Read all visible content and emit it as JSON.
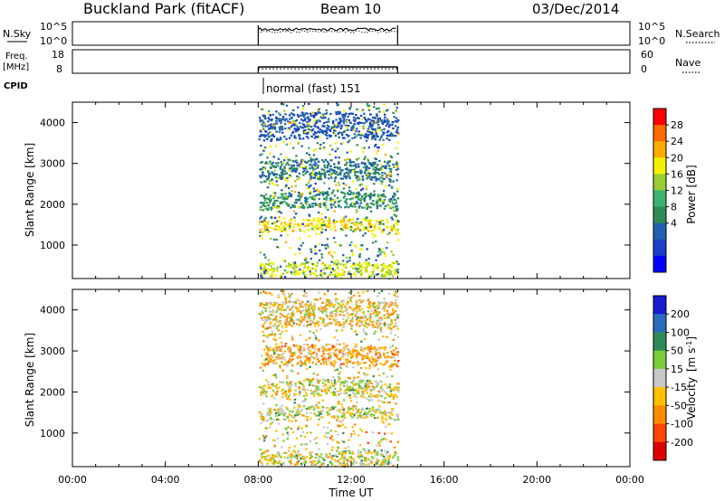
{
  "header": {
    "station": "Buckland Park (fitACF)",
    "beam": "Beam 10",
    "date": "03/Dec/2014"
  },
  "panels": {
    "nsky": {
      "label": "N.Sky",
      "left_ticks": [
        "10^5",
        "10^0"
      ],
      "right_ticks": [
        "10^5",
        "10^0"
      ],
      "right_label": "N.Search"
    },
    "freq": {
      "label_line1": "Freq.",
      "label_line2": "[MHz]",
      "left_ticks": [
        "18",
        "8"
      ],
      "right_ticks": [
        "60",
        "0"
      ],
      "right_label": "Nave"
    },
    "cpid": {
      "label": "CPID",
      "text": "normal (fast) 151"
    }
  },
  "chart_data": [
    {
      "type": "heatmap",
      "name": "power",
      "ylabel": "Slant Range [km]",
      "yticks": [
        "4000",
        "3000",
        "2000",
        "1000"
      ],
      "ytick_values": [
        4000,
        3000,
        2000,
        1000
      ],
      "ylim": [
        180,
        4500
      ],
      "colorbar_label": "Power [dB]",
      "colorbar_ticks": [
        "28",
        "24",
        "20",
        "16",
        "12",
        "8",
        "4"
      ],
      "colorbar_colors": [
        "#ff0000",
        "#ff6a00",
        "#ffaa00",
        "#f2f200",
        "#9acd32",
        "#3cb371",
        "#2e8b57",
        "#2060b0",
        "#1a3fc8",
        "#0000ff"
      ],
      "data_window_hours": [
        8,
        14
      ],
      "echo_bands_km": [
        {
          "range": [
            3550,
            4200
          ],
          "level": 6
        },
        {
          "range": [
            2550,
            3050
          ],
          "level": 9
        },
        {
          "range": [
            1850,
            2250
          ],
          "level": 11
        },
        {
          "range": [
            1300,
            1600
          ],
          "level": 22
        },
        {
          "range": [
            250,
            600
          ],
          "level": 20
        }
      ]
    },
    {
      "type": "heatmap",
      "name": "velocity",
      "ylabel": "Slant Range [km]",
      "yticks": [
        "4000",
        "3000",
        "2000",
        "1000"
      ],
      "ytick_values": [
        4000,
        3000,
        2000,
        1000
      ],
      "ylim": [
        180,
        4500
      ],
      "colorbar_label": "Velocity",
      "colorbar_unit": "[m s",
      "colorbar_unit_sup": "-1",
      "colorbar_unit_end": "]",
      "colorbar_ticks": [
        "200",
        "100",
        "50",
        "15",
        "-15",
        "-50",
        "-100",
        "-200"
      ],
      "colorbar_colors": [
        "#1a1ad0",
        "#2a6cc0",
        "#2e8b57",
        "#7ccd3c",
        "#c8c8c8",
        "#ffc000",
        "#ff8c00",
        "#ff4500",
        "#e00000"
      ],
      "data_window_hours": [
        8,
        14
      ],
      "echo_bands_km": [
        {
          "range": [
            3550,
            4200
          ],
          "velocity": -30
        },
        {
          "range": [
            2600,
            3100
          ],
          "velocity": -50
        },
        {
          "range": [
            1850,
            2250
          ],
          "velocity": 0
        },
        {
          "range": [
            1300,
            1600
          ],
          "velocity": 0
        },
        {
          "range": [
            250,
            600
          ],
          "velocity": 0
        }
      ]
    }
  ],
  "time_axis": {
    "xlabel": "Time UT",
    "ticks": [
      "00:00",
      "04:00",
      "08:00",
      "12:00",
      "16:00",
      "20:00",
      "00:00"
    ],
    "tick_hours": [
      0,
      4,
      8,
      12,
      16,
      20,
      24
    ]
  }
}
